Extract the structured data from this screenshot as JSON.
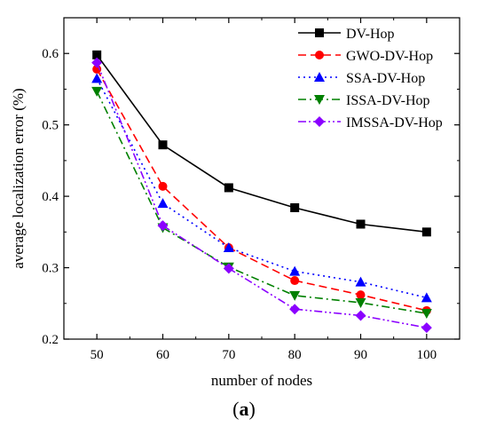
{
  "chart_data": {
    "type": "line",
    "title": "",
    "xlabel": "number of nodes",
    "ylabel": "average localization error (%)",
    "x": [
      50,
      60,
      70,
      80,
      90,
      100
    ],
    "xlim": [
      45,
      105
    ],
    "ylim": [
      0.2,
      0.65
    ],
    "x_ticks": [
      "50",
      "60",
      "70",
      "80",
      "90",
      "100"
    ],
    "y_ticks": [
      "0.2",
      "0.3",
      "0.4",
      "0.5",
      "0.6"
    ],
    "grid": false,
    "legend_position": "top-right",
    "series": [
      {
        "name": "DV-Hop",
        "values": [
          0.598,
          0.472,
          0.412,
          0.384,
          0.361,
          0.35
        ],
        "color": "#000000",
        "marker": "square",
        "dash": "solid"
      },
      {
        "name": "GWO-DV-Hop",
        "values": [
          0.578,
          0.414,
          0.328,
          0.282,
          0.262,
          0.24
        ],
        "color": "#ff0000",
        "marker": "circle",
        "dash": "dash"
      },
      {
        "name": "SSA-DV-Hop",
        "values": [
          0.565,
          0.39,
          0.328,
          0.295,
          0.28,
          0.258
        ],
        "color": "#0000ff",
        "marker": "triangle-up",
        "dash": "dot"
      },
      {
        "name": "ISSA-DV-Hop",
        "values": [
          0.547,
          0.356,
          0.301,
          0.261,
          0.251,
          0.236
        ],
        "color": "#008000",
        "marker": "triangle-down",
        "dash": "dashdot"
      },
      {
        "name": "IMSSA-DV-Hop",
        "values": [
          0.587,
          0.359,
          0.299,
          0.242,
          0.233,
          0.216
        ],
        "color": "#8b00ff",
        "marker": "diamond",
        "dash": "dashdotdot"
      }
    ]
  },
  "caption": {
    "open": "(",
    "letter": "a",
    "close": ")"
  }
}
